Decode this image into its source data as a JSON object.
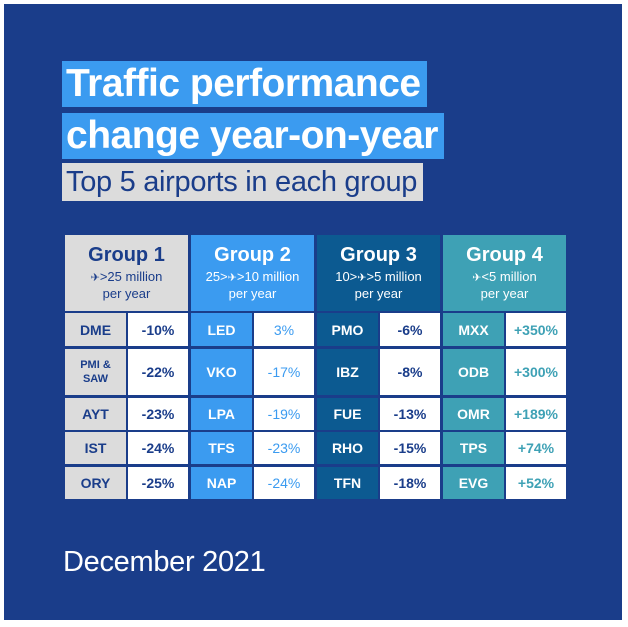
{
  "title": {
    "line1": "Traffic performance",
    "line2": "change year-on-year"
  },
  "subtitle": "Top 5 airports in each group",
  "groups": [
    {
      "name": "Group 1",
      "range": ">25 million",
      "per": "per year",
      "range_prefix": ""
    },
    {
      "name": "Group 2",
      "range": ">10 million",
      "per": "per year",
      "range_prefix": "25>"
    },
    {
      "name": "Group 3",
      "range": ">5 million",
      "per": "per year",
      "range_prefix": "10>"
    },
    {
      "name": "Group 4",
      "range": "<5 million",
      "per": "per year",
      "range_prefix": ""
    }
  ],
  "icon": "traveller-icon",
  "rows": [
    [
      [
        "DME",
        "-10%"
      ],
      [
        "LED",
        "3%"
      ],
      [
        "PMO",
        "-6%"
      ],
      [
        "MXX",
        "+350%"
      ]
    ],
    [
      [
        "PMI & SAW",
        "-22%"
      ],
      [
        "VKO",
        "-17%"
      ],
      [
        "IBZ",
        "-8%"
      ],
      [
        "ODB",
        "+300%"
      ]
    ],
    [
      [
        "AYT",
        "-23%"
      ],
      [
        "LPA",
        "-19%"
      ],
      [
        "FUE",
        "-13%"
      ],
      [
        "OMR",
        "+189%"
      ]
    ],
    [
      [
        "IST",
        "-24%"
      ],
      [
        "TFS",
        "-23%"
      ],
      [
        "RHO",
        "-15%"
      ],
      [
        "TPS",
        "+74%"
      ]
    ],
    [
      [
        "ORY",
        "-25%"
      ],
      [
        "NAP",
        "-24%"
      ],
      [
        "TFN",
        "-18%"
      ],
      [
        "EVG",
        "+52%"
      ]
    ]
  ],
  "footer": "December 2021",
  "colors": {
    "background": "#1a3d8a",
    "group1": "#dcdcdc",
    "group2": "#3b9bf0",
    "group3": "#0c5a91",
    "group4": "#3ea1b5"
  }
}
